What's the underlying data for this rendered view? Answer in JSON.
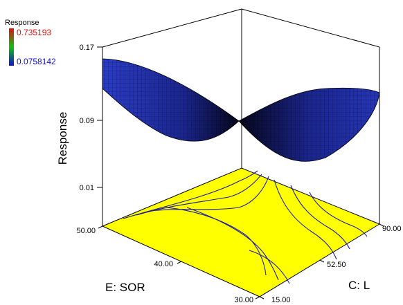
{
  "legend": {
    "title": "Response",
    "max_label": "0.735193",
    "min_label": "0.0758142",
    "max_color": "#e01010",
    "min_color": "#1010d0"
  },
  "axes": {
    "z_label": "Response",
    "x_label": "E: SOR",
    "y_label": "C: L",
    "z_ticks": [
      "0.17",
      "0.09",
      "0.01"
    ],
    "x_ticks": [
      "50.00",
      "40.00",
      "30.00"
    ],
    "y_ticks": [
      "15.00",
      "52.50",
      "90.00"
    ]
  },
  "chart_data": {
    "type": "surface",
    "title": "",
    "x": {
      "label": "E: SOR",
      "range": [
        30,
        50
      ],
      "ticks": [
        30,
        40,
        50
      ]
    },
    "y": {
      "label": "C: L",
      "range": [
        15,
        90
      ],
      "ticks": [
        15,
        52.5,
        90
      ]
    },
    "z": {
      "label": "Response",
      "range": [
        0.01,
        0.17
      ],
      "ticks": [
        0.01,
        0.09,
        0.17
      ]
    },
    "surface_grid": {
      "x_values": [
        30,
        40,
        50
      ],
      "y_values": [
        15,
        52.5,
        90
      ],
      "z_rows_by_x": [
        [
          0.145,
          0.1,
          0.125
        ],
        [
          0.115,
          0.09,
          0.105
        ],
        [
          0.083,
          0.08,
          0.088
        ]
      ]
    },
    "floor_contours": true,
    "colors": {
      "surface": "#1a2a9c",
      "floor": "#ffff00",
      "contour": "#1a1aa0"
    }
  }
}
